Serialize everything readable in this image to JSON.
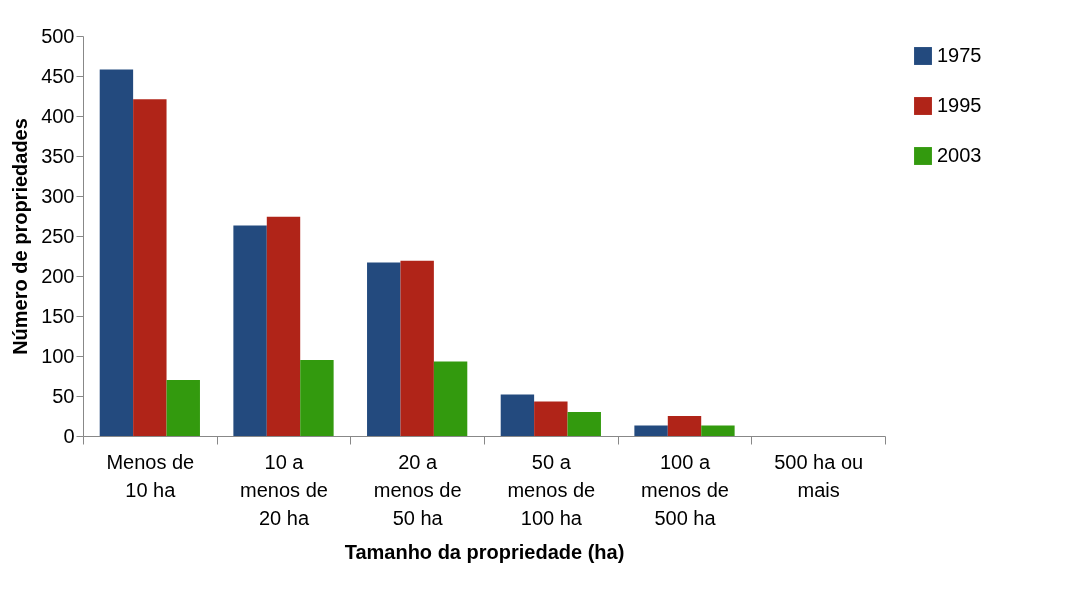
{
  "chart_data": {
    "type": "bar",
    "xlabel": "Tamanho da propriedade (ha)",
    "ylabel": "Número de propriedades",
    "categories": [
      "Menos de 10 ha",
      "10 a menos de 20 ha",
      "20 a menos de 50 ha",
      "50 a menos de 100 ha",
      "100 a menos de 500 ha",
      "500 ha ou mais"
    ],
    "series": [
      {
        "name": "1975",
        "color": "#234a7e",
        "values": [
          458,
          263,
          217,
          52,
          13,
          0
        ]
      },
      {
        "name": "1995",
        "color": "#b02418",
        "values": [
          421,
          274,
          219,
          43,
          25,
          0
        ]
      },
      {
        "name": "2003",
        "color": "#339a0e",
        "values": [
          70,
          95,
          93,
          30,
          13,
          0
        ]
      }
    ],
    "ylim": [
      0,
      500
    ],
    "yticks": [
      0,
      50,
      100,
      150,
      200,
      250,
      300,
      350,
      400,
      450,
      500
    ],
    "grid": false,
    "legend": "right"
  }
}
